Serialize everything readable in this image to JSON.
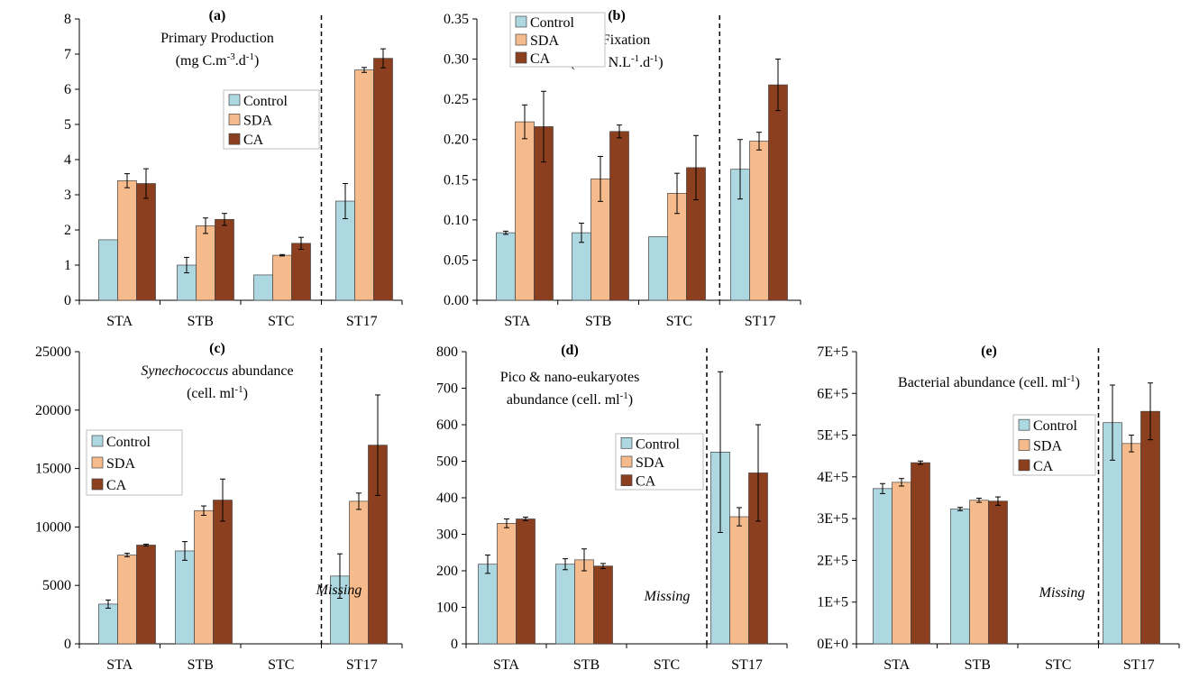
{
  "colors": {
    "Control": "#add8e2",
    "SDA": "#f6bb8c",
    "CA": "#8b3f1e"
  },
  "chart_data": [
    {
      "id": "a",
      "type": "bar",
      "panel_label": "(a)",
      "title_lines": [
        "Primary Production",
        "(mg C.m-3.d-1)"
      ],
      "categories": [
        "STA",
        "STB",
        "STC",
        "ST17"
      ],
      "ylim": [
        0,
        8
      ],
      "yticks": [
        0,
        1,
        2,
        3,
        4,
        5,
        6,
        7,
        8
      ],
      "ytick_labels": [
        "0",
        "1",
        "2",
        "3",
        "4",
        "5",
        "6",
        "7",
        "8"
      ],
      "legend": [
        "Control",
        "SDA",
        "CA"
      ],
      "series": [
        {
          "name": "Control",
          "values": [
            1.72,
            1.0,
            0.72,
            2.82
          ],
          "errors": [
            0.0,
            0.22,
            0.0,
            0.5
          ]
        },
        {
          "name": "SDA",
          "values": [
            3.4,
            2.12,
            1.28,
            6.55
          ],
          "errors": [
            0.2,
            0.22,
            0.02,
            0.07
          ]
        },
        {
          "name": "CA",
          "values": [
            3.32,
            2.3,
            1.62,
            6.88
          ],
          "errors": [
            0.42,
            0.17,
            0.17,
            0.27
          ]
        }
      ],
      "divider_after_index": 2,
      "missing_label": ""
    },
    {
      "id": "b",
      "type": "bar",
      "panel_label": "(b)",
      "title_lines": [
        "N2 Fixation",
        "(nmol N.L-1.d-1)"
      ],
      "categories": [
        "STA",
        "STB",
        "STC",
        "ST17"
      ],
      "ylim": [
        0,
        0.35
      ],
      "yticks": [
        0,
        0.05,
        0.1,
        0.15,
        0.2,
        0.25,
        0.3,
        0.35
      ],
      "ytick_labels": [
        "0.00",
        "0.05",
        "0.10",
        "0.15",
        "0.20",
        "0.25",
        "0.30",
        "0.35"
      ],
      "legend": [
        "Control",
        "SDA",
        "CA"
      ],
      "series": [
        {
          "name": "Control",
          "values": [
            0.084,
            0.084,
            0.079,
            0.163
          ],
          "errors": [
            0.002,
            0.012,
            0.0,
            0.037
          ]
        },
        {
          "name": "SDA",
          "values": [
            0.222,
            0.151,
            0.133,
            0.198
          ],
          "errors": [
            0.021,
            0.028,
            0.025,
            0.011
          ]
        },
        {
          "name": "CA",
          "values": [
            0.216,
            0.21,
            0.165,
            0.268
          ],
          "errors": [
            0.044,
            0.008,
            0.04,
            0.032
          ]
        }
      ],
      "divider_after_index": 2,
      "missing_label": ""
    },
    {
      "id": "c",
      "type": "bar",
      "panel_label": "(c)",
      "title_lines": [
        "Synechococcus abundance",
        "(cell. ml-1)"
      ],
      "categories": [
        "STA",
        "STB",
        "STC",
        "ST17"
      ],
      "ylim": [
        0,
        25000
      ],
      "yticks": [
        0,
        5000,
        10000,
        15000,
        20000,
        25000
      ],
      "ytick_labels": [
        "0",
        "5000",
        "10000",
        "15000",
        "20000",
        "25000"
      ],
      "legend": [
        "Control",
        "SDA",
        "CA"
      ],
      "series": [
        {
          "name": "Control",
          "values": [
            3400,
            7950,
            null,
            5800
          ],
          "errors": [
            350,
            800,
            null,
            1900
          ]
        },
        {
          "name": "SDA",
          "values": [
            7600,
            11400,
            null,
            12200
          ],
          "errors": [
            150,
            400,
            null,
            700
          ]
        },
        {
          "name": "CA",
          "values": [
            8450,
            12300,
            null,
            17000
          ],
          "errors": [
            80,
            1800,
            null,
            4300
          ]
        }
      ],
      "divider_after_index": 2,
      "missing_label": "Missing"
    },
    {
      "id": "d",
      "type": "bar",
      "panel_label": "(d)",
      "title_lines": [
        "Pico & nano-eukaryotes",
        "abundance (cell. ml-1)"
      ],
      "categories": [
        "STA",
        "STB",
        "STC",
        "ST17"
      ],
      "ylim": [
        0,
        800
      ],
      "yticks": [
        0,
        100,
        200,
        300,
        400,
        500,
        600,
        700,
        800
      ],
      "ytick_labels": [
        "0",
        "100",
        "200",
        "300",
        "400",
        "500",
        "600",
        "700",
        "800"
      ],
      "legend": [
        "Control",
        "SDA",
        "CA"
      ],
      "series": [
        {
          "name": "Control",
          "values": [
            218,
            218,
            null,
            525
          ],
          "errors": [
            25,
            15,
            null,
            220
          ]
        },
        {
          "name": "SDA",
          "values": [
            330,
            230,
            null,
            348
          ],
          "errors": [
            12,
            30,
            null,
            25
          ]
        },
        {
          "name": "CA",
          "values": [
            342,
            213,
            null,
            468
          ],
          "errors": [
            5,
            7,
            null,
            132
          ]
        }
      ],
      "divider_after_index": 2,
      "missing_label": "Missing"
    },
    {
      "id": "e",
      "type": "bar",
      "panel_label": "(e)",
      "title_lines": [
        "Bacterial abundance (cell. ml-1)"
      ],
      "categories": [
        "STA",
        "STB",
        "STC",
        "ST17"
      ],
      "ylim": [
        0,
        700000
      ],
      "yticks": [
        0,
        100000,
        200000,
        300000,
        400000,
        500000,
        600000,
        700000
      ],
      "ytick_labels": [
        "0E+0",
        "1E+5",
        "2E+5",
        "3E+5",
        "4E+5",
        "5E+5",
        "6E+5",
        "7E+5"
      ],
      "legend": [
        "Control",
        "SDA",
        "CA"
      ],
      "series": [
        {
          "name": "Control",
          "values": [
            372000,
            323000,
            null,
            530000
          ],
          "errors": [
            12000,
            4000,
            null,
            90000
          ]
        },
        {
          "name": "SDA",
          "values": [
            387000,
            344000,
            null,
            480000
          ],
          "errors": [
            9000,
            5000,
            null,
            20000
          ]
        },
        {
          "name": "CA",
          "values": [
            434000,
            342000,
            null,
            557000
          ],
          "errors": [
            4000,
            10000,
            null,
            68000
          ]
        }
      ],
      "divider_after_index": 2,
      "missing_label": "Missing"
    }
  ]
}
